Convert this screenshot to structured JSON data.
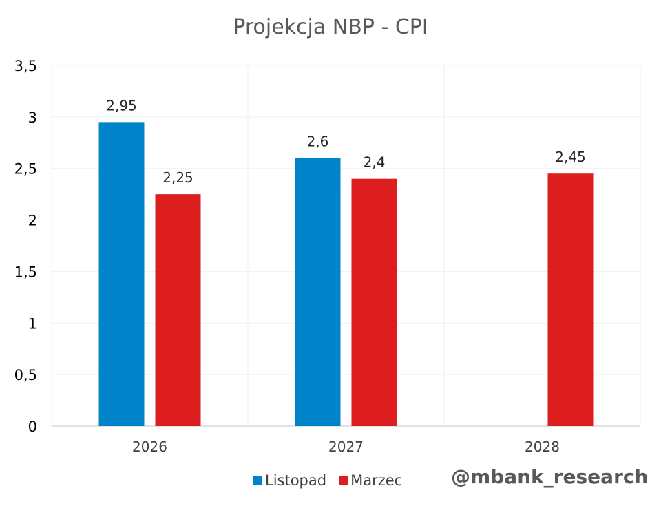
{
  "chart_data": {
    "type": "bar",
    "title": "Projekcja NBP - CPI",
    "categories": [
      "2026",
      "2027",
      "2028"
    ],
    "series": [
      {
        "name": "Listopad",
        "color": "#0084c9",
        "values": [
          2.95,
          2.6,
          null
        ],
        "labels": [
          "2,95",
          "2,6",
          ""
        ]
      },
      {
        "name": "Marzec",
        "color": "#dc1e1e",
        "values": [
          2.25,
          2.4,
          2.45
        ],
        "labels": [
          "2,25",
          "2,4",
          "2,45"
        ]
      }
    ],
    "ylim": [
      0,
      3.5
    ],
    "yticks": [
      0,
      0.5,
      1,
      1.5,
      2,
      2.5,
      3,
      3.5
    ],
    "ytick_labels": [
      "0",
      "0,5",
      "1",
      "1,5",
      "2",
      "2,5",
      "3",
      "3,5"
    ],
    "xlabel": "",
    "ylabel": "",
    "grid": true,
    "legend": "bottom"
  },
  "watermark": "@mbank_research"
}
